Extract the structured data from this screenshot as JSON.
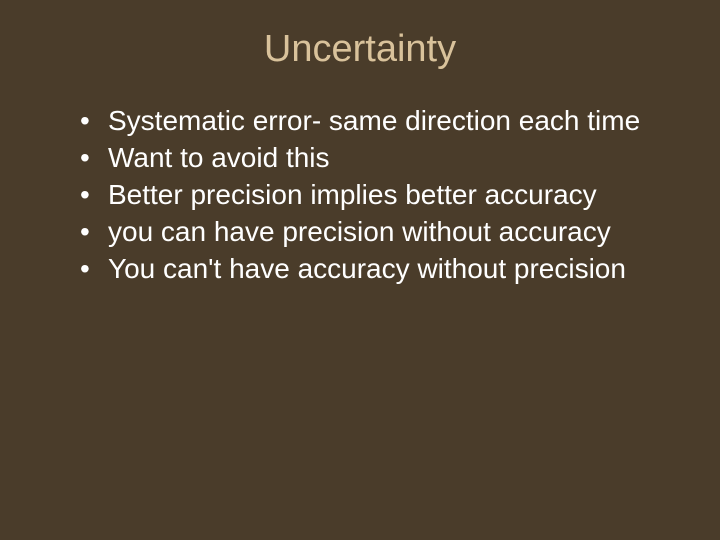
{
  "slide": {
    "title": "Uncertainty",
    "title_color": "#d9c29b",
    "title_fontsize": 38,
    "background_color": "#4a3c2a",
    "text_color": "#ffffff",
    "body_fontsize": 28,
    "bullets": [
      "Systematic error- same direction each time",
      "Want to avoid this",
      "Better precision implies better accuracy",
      "you can have precision without accuracy",
      "You can't have accuracy without precision"
    ]
  }
}
